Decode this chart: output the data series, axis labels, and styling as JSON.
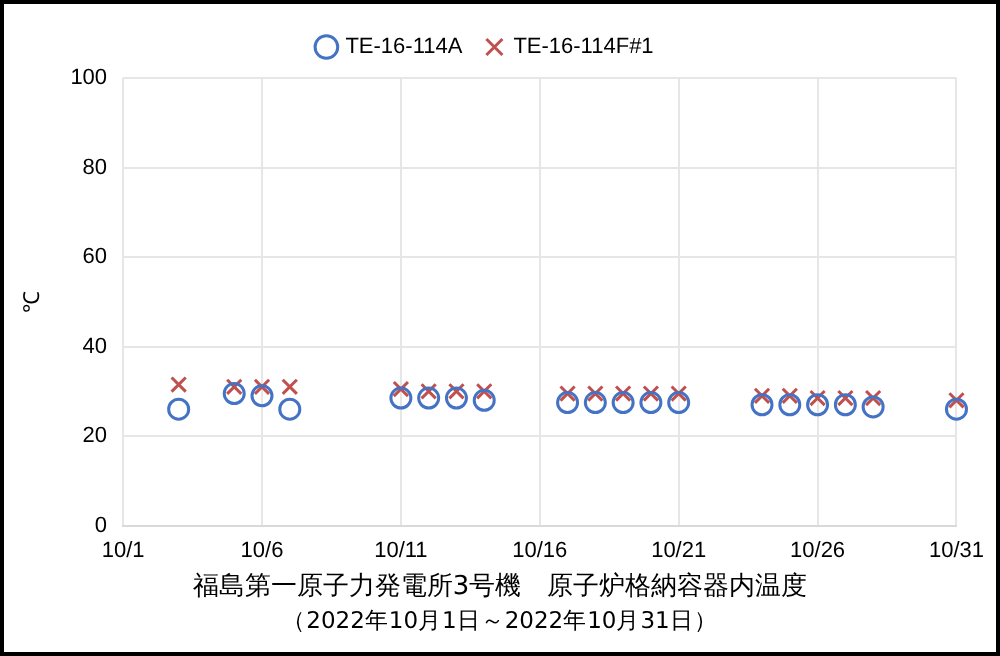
{
  "chart_data": {
    "type": "scatter",
    "title": "福島第一原子力発電所3号機　原子炉格納容器内温度",
    "subtitle": "（2022年10月1日～2022年10月31日）",
    "ylabel": "℃",
    "x": [
      "--10-03",
      "--10-05",
      "--10-06",
      "--10-07",
      "--10-11",
      "--10-12",
      "--10-13",
      "--10-14",
      "--10-17",
      "--10-18",
      "--10-19",
      "--10-20",
      "--10-21",
      "--10-24",
      "--10-25",
      "--10-26",
      "--10-27",
      "--10-28",
      "--10-31"
    ],
    "series": [
      {
        "name": "TE-16-114A",
        "color": "#4472c4",
        "marker": "circle",
        "values": [
          26,
          29.5,
          29,
          26,
          28.5,
          28.5,
          28.5,
          28,
          27.5,
          27.5,
          27.5,
          27.5,
          27.5,
          27,
          27,
          27,
          27,
          26.5,
          26
        ]
      },
      {
        "name": "TE-16-114F#1",
        "color": "#c0504d",
        "marker": "cross",
        "values": [
          31.5,
          31,
          31,
          31,
          30.5,
          30,
          30,
          30,
          29.5,
          29.5,
          29.5,
          29.5,
          29.5,
          29,
          29,
          28.5,
          28.5,
          28.5,
          28
        ]
      }
    ],
    "xlim": [
      "--10-01",
      "--10-31"
    ],
    "xticks": [
      {
        "value": "--10-01",
        "label": "10/1"
      },
      {
        "value": "--10-06",
        "label": "10/6"
      },
      {
        "value": "--10-11",
        "label": "10/11"
      },
      {
        "value": "--10-16",
        "label": "10/16"
      },
      {
        "value": "--10-21",
        "label": "10/21"
      },
      {
        "value": "--10-26",
        "label": "10/26"
      },
      {
        "value": "--10-31",
        "label": "10/31"
      }
    ],
    "ylim": [
      0,
      100
    ],
    "yticks": [
      0,
      20,
      40,
      60,
      80,
      100
    ],
    "grid": true,
    "legend": "top"
  }
}
